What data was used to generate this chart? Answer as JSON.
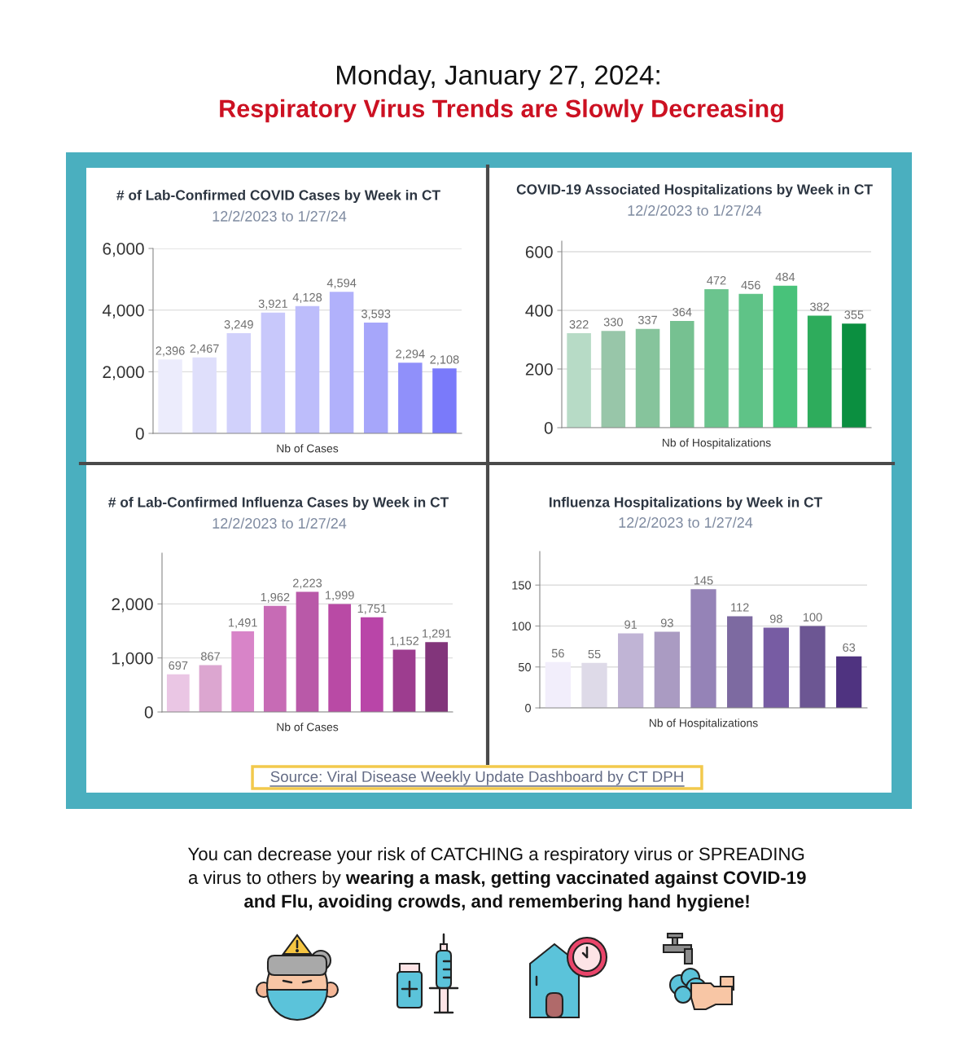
{
  "chart_data": [
    {
      "type": "other",
      "title": "Monday, January 27, 2024:",
      "subtitle": "Respiratory Virus Trends are Slowly Decreasing"
    },
    {
      "type": "bar",
      "title": "# of Lab-Confirmed COVID Cases by Week in CT",
      "subtitle": "12/2/2023 to 1/27/24",
      "xlabel": "Nb of Cases",
      "categories": [
        null,
        null,
        null,
        null,
        null,
        null,
        null,
        null,
        null
      ],
      "values": [
        2396,
        2467,
        3249,
        3921,
        4128,
        4594,
        3593,
        2294,
        2108
      ],
      "value_labels": [
        "2,396",
        "2,467",
        "3,249",
        "3,921",
        "4,128",
        "4,594",
        "3,593",
        "2,294",
        "2,108"
      ],
      "colors": [
        "#ececfc",
        "#dfdffb",
        "#d1d1fb",
        "#c8c8fb",
        "#bdbdfb",
        "#b1b1fb",
        "#a6a6fa",
        "#9090fa",
        "#7a7afa"
      ],
      "ylim": [
        0,
        6000
      ],
      "yticks": [
        0,
        {
          "value": 2000,
          "label": "2,000"
        },
        {
          "value": 4000,
          "label": "4,000"
        },
        {
          "value": 6000,
          "label": "6,000"
        }
      ],
      "grid": "y"
    },
    {
      "type": "bar",
      "title": "COVID-19 Associated Hospitalizations by Week in CT",
      "subtitle": "12/2/2023 to 1/27/24",
      "xlabel": "Nb of Hospitalizations",
      "categories": [
        null,
        null,
        null,
        null,
        null,
        null,
        null,
        null,
        null
      ],
      "values": [
        322,
        330,
        337,
        364,
        472,
        456,
        484,
        382,
        355
      ],
      "data_labels": true,
      "colors": [
        "#b7dbc6",
        "#98c6a9",
        "#86c49c",
        "#76c191",
        "#6bc48e",
        "#5fc387",
        "#48c27a",
        "#2eac5c",
        "#0b8f40"
      ],
      "ylim": [
        0,
        636
      ],
      "yticks": [
        0,
        200,
        400,
        600
      ],
      "grid": "y"
    },
    {
      "type": "bar",
      "title": "# of Lab-Confirmed Influenza Cases by Week in CT",
      "subtitle": "12/2/2023 to 1/27/24",
      "xlabel": "Nb of Cases",
      "categories": [
        null,
        null,
        null,
        null,
        null,
        null,
        null,
        null,
        null
      ],
      "values": [
        697,
        867,
        1491,
        1962,
        2223,
        1999,
        1751,
        1152,
        1291
      ],
      "value_labels": [
        "697",
        "867",
        "1,491",
        "1,962",
        "2,223",
        "1,999",
        "1,751",
        "1,152",
        "1,291"
      ],
      "colors": [
        "#eac6e4",
        "#dca6d0",
        "#d884c8",
        "#c76bb5",
        "#b959a8",
        "#b94aa5",
        "#b945a8",
        "#9d3d8f",
        "#82357b"
      ],
      "ylim": [
        0,
        2940
      ],
      "yticks": [
        0,
        {
          "value": 1000,
          "label": "1,000"
        },
        {
          "value": 2000,
          "label": "2,000"
        }
      ],
      "grid": "y"
    },
    {
      "type": "bar",
      "title": "Influenza Hospitalizations by Week in CT",
      "subtitle": "12/2/2023 to 1/27/24",
      "xlabel": "Nb of Hospitalizations",
      "categories": [
        null,
        null,
        null,
        null,
        null,
        null,
        null,
        null,
        null
      ],
      "values": [
        56,
        55,
        91,
        93,
        145,
        112,
        98,
        100,
        63
      ],
      "data_labels": true,
      "colors": [
        "#f2eefb",
        "#dedae8",
        "#c0b4d5",
        "#aa9bc2",
        "#9583b7",
        "#7d6aa1",
        "#775ca3",
        "#6c5693",
        "#4f3380"
      ],
      "ylim": [
        0,
        191
      ],
      "yticks": [
        0,
        50,
        100,
        150
      ],
      "grid": "y"
    },
    {
      "type": "other",
      "annotations": [
        "Source: Viral Disease Weekly Update Dashboard by CT DPH",
        "You can decrease your risk of CATCHING a respiratory virus or SPREADING",
        "a virus to others by",
        "wearing a mask, getting vaccinated against COVID-19",
        "and Flu, avoiding crowds, and remembering hand hygiene!"
      ]
    }
  ]
}
